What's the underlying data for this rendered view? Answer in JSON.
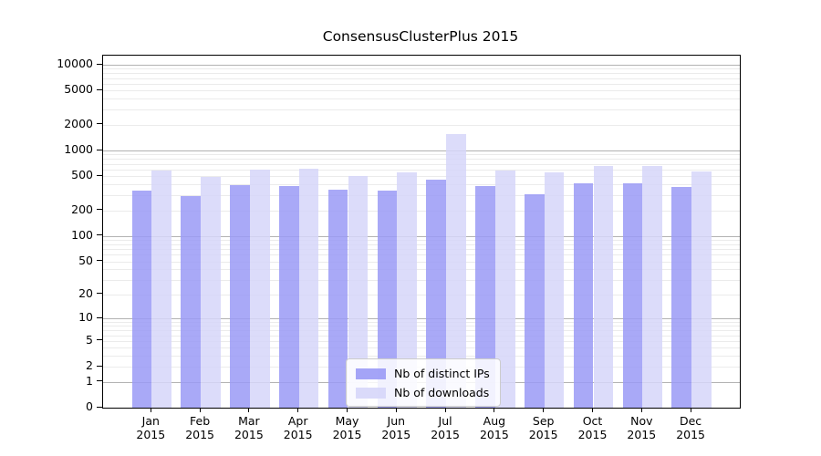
{
  "chart_data": {
    "type": "bar",
    "title": "ConsensusClusterPlus 2015",
    "categories": [
      "Jan",
      "Feb",
      "Mar",
      "Apr",
      "May",
      "Jun",
      "Jul",
      "Aug",
      "Sep",
      "Oct",
      "Nov",
      "Dec"
    ],
    "year_label": "2015",
    "series": [
      {
        "name": "Nb of distinct IPs",
        "color": "#9a9af6",
        "values": [
          340,
          290,
          395,
          380,
          350,
          340,
          455,
          380,
          305,
          410,
          415,
          375
        ]
      },
      {
        "name": "Nb of downloads",
        "color": "#d6d6f9",
        "values": [
          580,
          490,
          595,
          615,
          505,
          555,
          1540,
          590,
          560,
          655,
          660,
          565
        ]
      }
    ],
    "yscale": "log10(1+v)",
    "yticks": [
      0,
      1,
      2,
      5,
      10,
      20,
      50,
      100,
      200,
      500,
      1000,
      2000,
      5000,
      10000
    ],
    "ylim": [
      0,
      12800
    ],
    "grid": "horizontal, minor lines at 2-9 multiples of each decade, major lines at decades",
    "legend_position": "inside lower-center"
  },
  "colors": {
    "bar_ips": "#9a9af6",
    "bar_downloads": "#d6d6f9",
    "grid_major": "#b2b2b2",
    "grid_minor": "#ebebeb",
    "axis": "#000000",
    "legend_border": "#cccccc",
    "background": "#ffffff"
  }
}
